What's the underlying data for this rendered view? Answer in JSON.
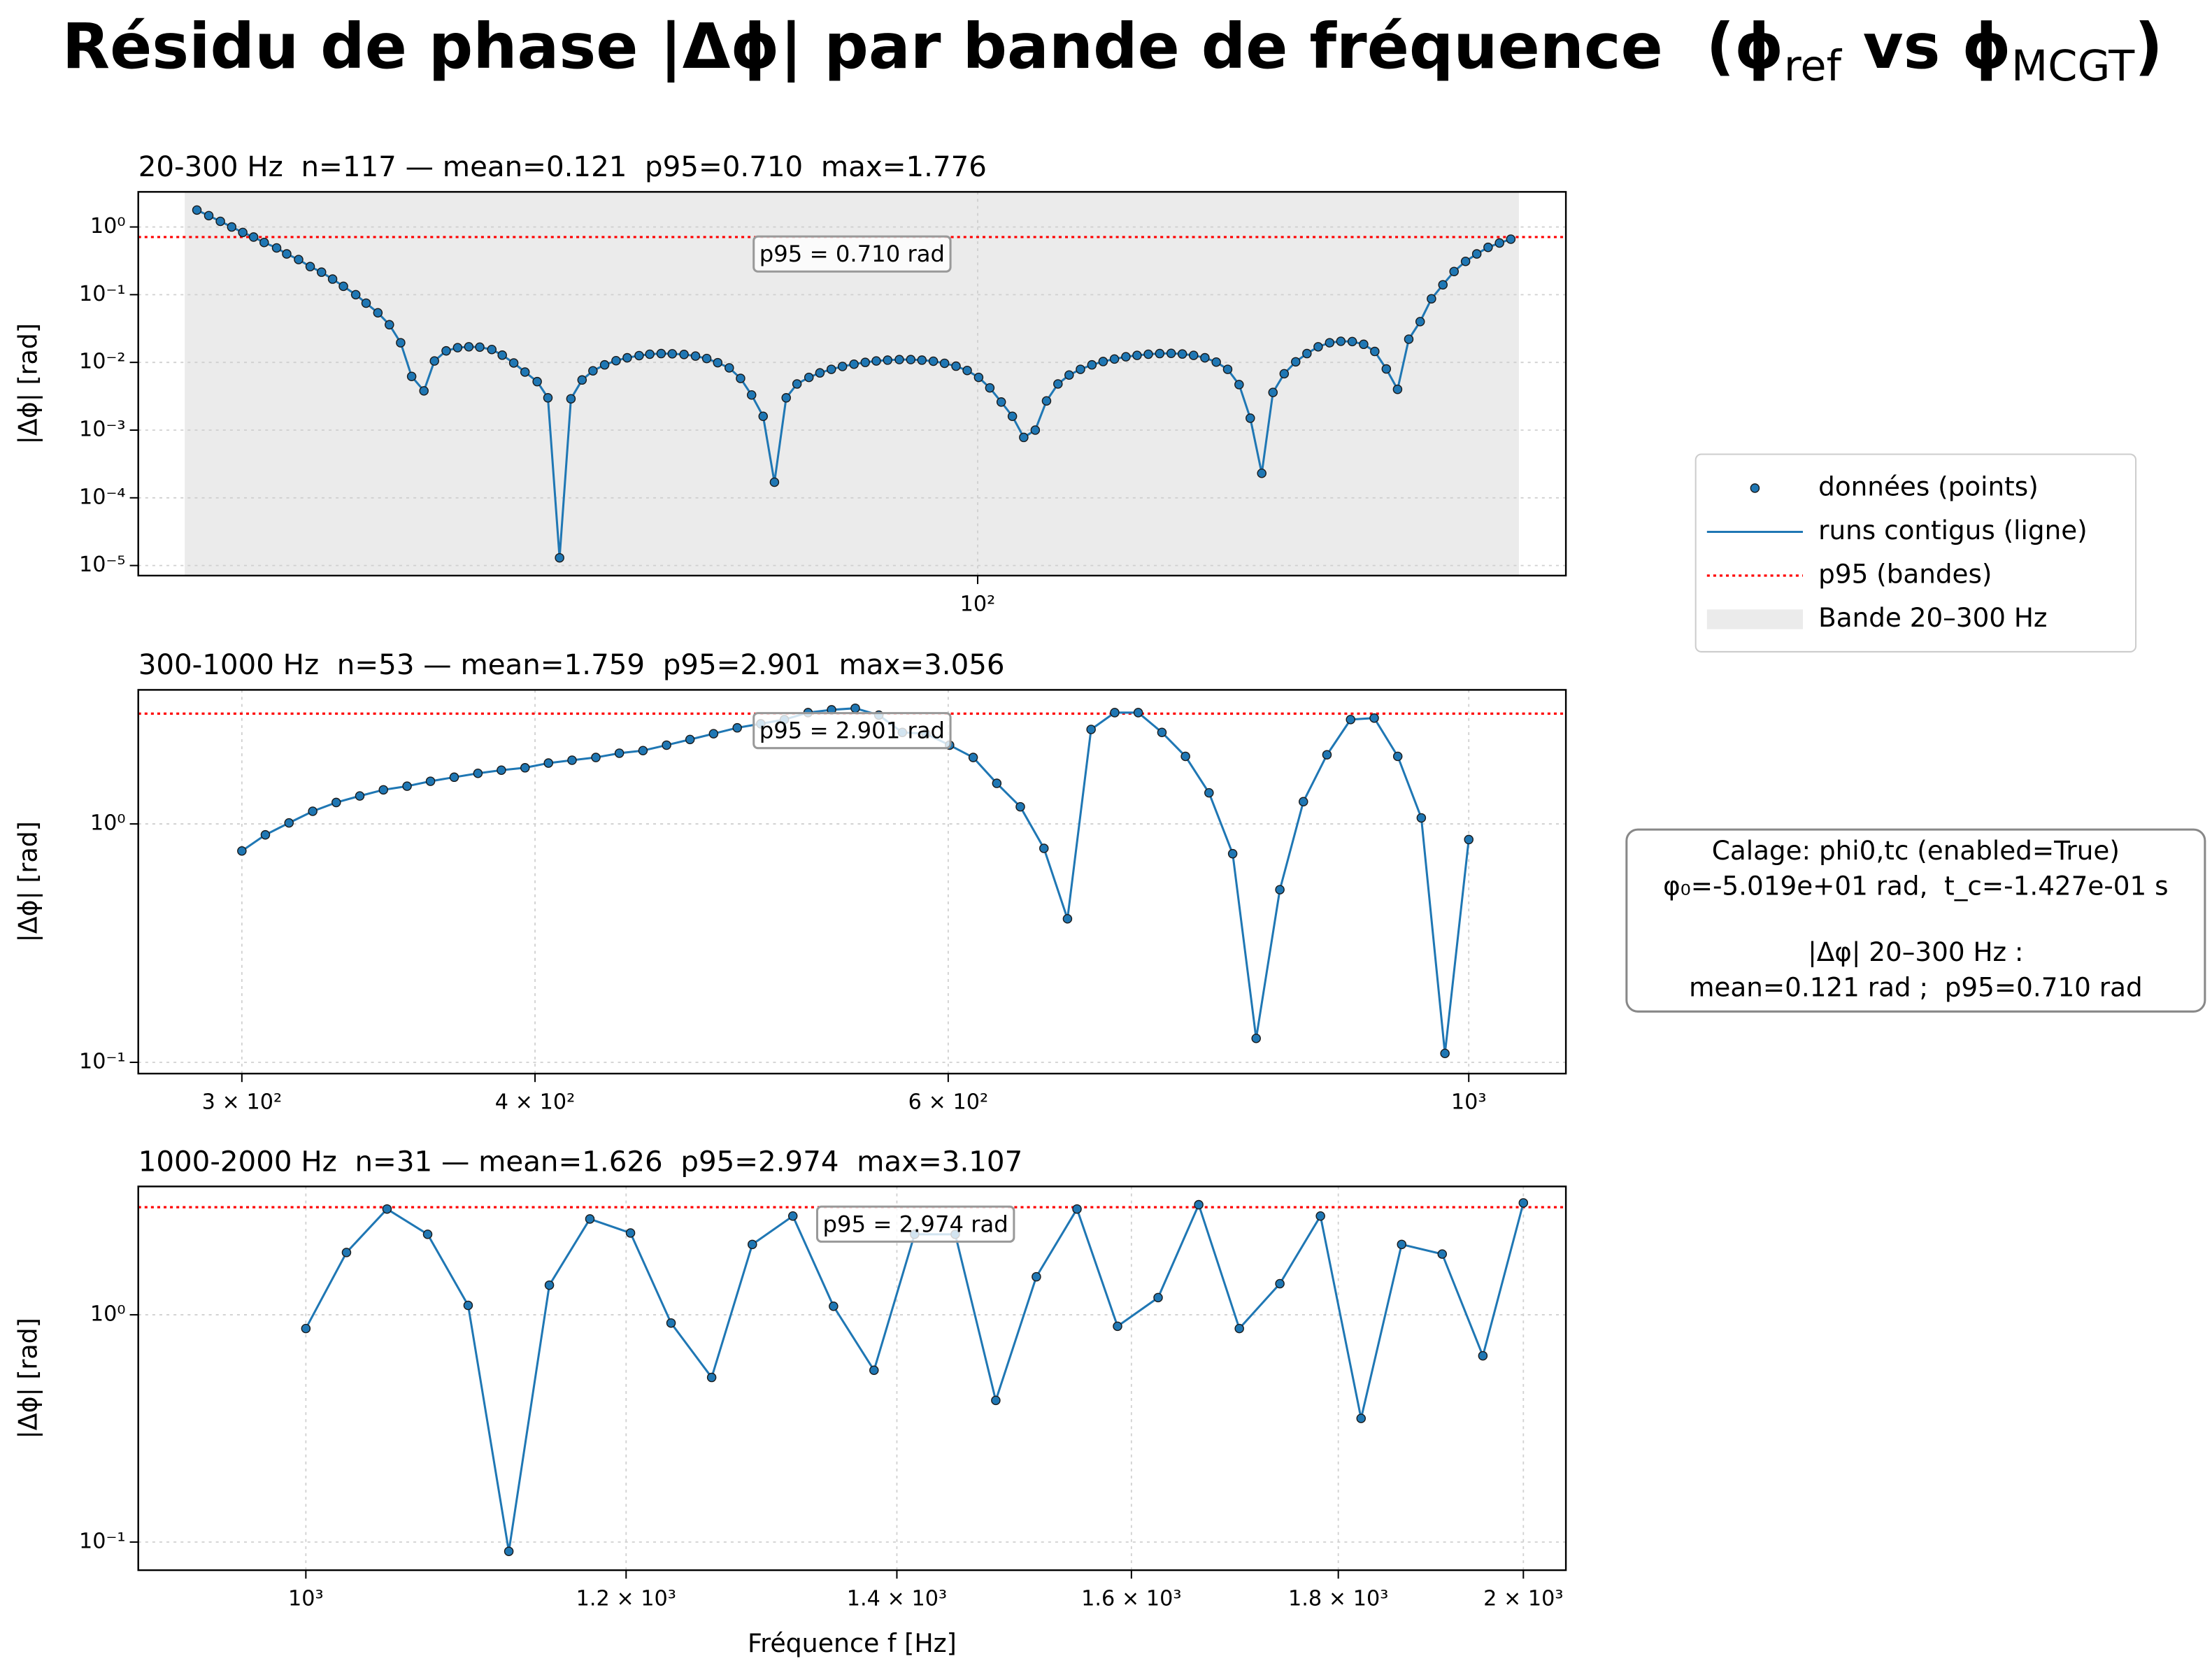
{
  "title_parts": [
    "Résidu de phase |Δϕ| par bande de fréquence  (ϕ",
    "ref",
    " vs ϕ",
    "MCGT",
    ")"
  ],
  "legend": {
    "items": [
      "données (points)",
      "runs contigus (ligne)",
      "p95 (bandes)",
      "Bande 20–300 Hz"
    ]
  },
  "info_box": [
    "Calage: phi0,tc (enabled=True)",
    "φ₀=-5.019e+01 rad,  t_c=-1.427e-01 s",
    "|Δφ| 20–300 Hz :",
    "mean=0.121 rad ;  p95=0.710 rad"
  ],
  "chart_data": [
    {
      "type": "line",
      "title": "20-300 Hz  n=117 — mean=0.121  p95=0.710  max=1.776",
      "y_label": "|Δϕ| [rad]",
      "xscale": "log",
      "yscale": "log",
      "grid": true,
      "xlim": [
        18.2,
        330
      ],
      "ylim": [
        7.1e-06,
        3.3
      ],
      "xticks": [
        {
          "value": 100,
          "label": "10²"
        }
      ],
      "yticks": [
        {
          "value": 1e-05,
          "label": "10⁻⁵"
        },
        {
          "value": 0.0001,
          "label": "10⁻⁴"
        },
        {
          "value": 0.001,
          "label": "10⁻³"
        },
        {
          "value": 0.01,
          "label": "10⁻²"
        },
        {
          "value": 0.1,
          "label": "10⁻¹"
        },
        {
          "value": 1,
          "label": "10⁰"
        }
      ],
      "band": [
        20,
        300
      ],
      "band_color": "#ebebeb",
      "p95": 0.71,
      "p95_color": "#ff0000",
      "annotation": "p95 = 0.710 rad",
      "x": [
        20.5,
        21.0,
        21.5,
        22.0,
        22.5,
        23.0,
        23.5,
        24.1,
        24.6,
        25.2,
        25.8,
        26.4,
        27.0,
        27.6,
        28.3,
        28.9,
        29.6,
        30.3,
        31.0,
        31.7,
        32.5,
        33.2,
        34.0,
        34.8,
        35.6,
        36.4,
        37.3,
        38.1,
        39.0,
        39.9,
        40.9,
        41.8,
        42.8,
        43.8,
        44.8,
        45.8,
        46.9,
        48.0,
        49.1,
        50.3,
        51.4,
        52.6,
        53.8,
        55.1,
        56.4,
        57.7,
        59.0,
        60.4,
        61.8,
        63.2,
        64.7,
        66.2,
        67.8,
        69.3,
        71.0,
        72.6,
        74.3,
        76.0,
        77.8,
        79.6,
        81.4,
        83.3,
        85.3,
        87.3,
        89.3,
        91.4,
        93.5,
        95.7,
        97.9,
        100.2,
        102.5,
        104.9,
        107.3,
        109.8,
        112.4,
        115.0,
        117.7,
        120.4,
        123.2,
        126.1,
        129.0,
        132.0,
        135.1,
        138.2,
        141.4,
        144.7,
        148.1,
        151.5,
        155.0,
        158.6,
        162.3,
        166.1,
        170.0,
        173.9,
        178.0,
        182.1,
        186.3,
        190.7,
        195.1,
        199.6,
        204.3,
        209.0,
        213.9,
        218.9,
        223.9,
        229.2,
        234.5,
        239.9,
        245.5,
        251.2,
        257.1,
        263.0,
        269.2,
        275.4,
        281.8,
        288.4,
        295.1
      ],
      "series": [
        {
          "color": "#1f77b4",
          "values": [
            1.776,
            1.47,
            1.21,
            1.0,
            0.83,
            0.71,
            0.59,
            0.49,
            0.4,
            0.33,
            0.26,
            0.215,
            0.17,
            0.133,
            0.1,
            0.075,
            0.054,
            0.036,
            0.0195,
            0.0062,
            0.0038,
            0.0105,
            0.0148,
            0.0165,
            0.017,
            0.0168,
            0.0155,
            0.0128,
            0.0098,
            0.0072,
            0.0052,
            0.003,
            1.3e-05,
            0.0029,
            0.0055,
            0.0075,
            0.0092,
            0.0106,
            0.0117,
            0.0126,
            0.0132,
            0.0135,
            0.0134,
            0.0131,
            0.0124,
            0.0114,
            0.0099,
            0.0083,
            0.0058,
            0.0033,
            0.0016,
            0.00017,
            0.003,
            0.0048,
            0.006,
            0.007,
            0.0079,
            0.0087,
            0.0094,
            0.01,
            0.0105,
            0.0108,
            0.011,
            0.011,
            0.0108,
            0.0104,
            0.0097,
            0.0088,
            0.0076,
            0.006,
            0.0042,
            0.0026,
            0.0016,
            0.00078,
            0.001,
            0.0027,
            0.0048,
            0.0065,
            0.0079,
            0.0092,
            0.0103,
            0.0112,
            0.0121,
            0.0127,
            0.0132,
            0.0135,
            0.0136,
            0.0133,
            0.0127,
            0.0117,
            0.0101,
            0.0079,
            0.0047,
            0.0015,
            0.00023,
            0.0036,
            0.0068,
            0.0102,
            0.0135,
            0.017,
            0.0195,
            0.0205,
            0.0203,
            0.0185,
            0.0145,
            0.008,
            0.004,
            0.022,
            0.04,
            0.087,
            0.14,
            0.22,
            0.31,
            0.4,
            0.5,
            0.58,
            0.66
          ]
        }
      ]
    },
    {
      "type": "line",
      "title": "300-1000 Hz  n=53 — mean=1.759  p95=2.901  max=3.056",
      "y_label": "|Δϕ| [rad]",
      "xscale": "log",
      "yscale": "log",
      "grid": true,
      "xlim": [
        271,
        1100
      ],
      "ylim": [
        0.0897,
        3.65
      ],
      "xticks": [
        {
          "value": 300,
          "label": "3 × 10²"
        },
        {
          "value": 400,
          "label": "4 × 10²"
        },
        {
          "value": 600,
          "label": "6 × 10²"
        },
        {
          "value": 1000,
          "label": "10³"
        }
      ],
      "yticks": [
        {
          "value": 0.1,
          "label": "10⁻¹"
        },
        {
          "value": 1,
          "label": "10⁰"
        }
      ],
      "p95": 2.901,
      "p95_color": "#ff0000",
      "annotation": "p95 = 2.901 rad",
      "x": [
        300,
        307.0,
        314.2,
        321.6,
        329.1,
        336.8,
        344.7,
        352.8,
        361.0,
        369.5,
        378.2,
        387.0,
        396.1,
        405.3,
        414.8,
        424.6,
        434.5,
        444.7,
        455.1,
        465.7,
        476.6,
        487.8,
        499.2,
        510.9,
        522.9,
        535.1,
        547.7,
        560.5,
        573.6,
        587.0,
        600.8,
        614.9,
        629.3,
        644.0,
        659.1,
        674.5,
        690.3,
        706.5,
        723.0,
        740.0,
        757.3,
        775.0,
        793.2,
        811.7,
        830.8,
        850.2,
        870.1,
        890.5,
        911.4,
        932.7,
        954.5,
        976.9,
        1000
      ],
      "series": [
        {
          "color": "#1f77b4",
          "values": [
            0.77,
            0.9,
            1.01,
            1.13,
            1.23,
            1.31,
            1.39,
            1.44,
            1.51,
            1.57,
            1.63,
            1.68,
            1.72,
            1.8,
            1.85,
            1.9,
            1.98,
            2.03,
            2.14,
            2.26,
            2.39,
            2.53,
            2.63,
            2.74,
            2.93,
            3.01,
            3.056,
            2.86,
            2.42,
            2.39,
            2.14,
            1.9,
            1.48,
            1.18,
            0.79,
            0.4,
            2.49,
            2.93,
            2.93,
            2.42,
            1.92,
            1.35,
            0.75,
            0.126,
            0.53,
            1.24,
            1.95,
            2.74,
            2.78,
            1.92,
            1.06,
            0.109,
            0.86
          ]
        }
      ]
    },
    {
      "type": "line",
      "title": "1000-2000 Hz  n=31 — mean=1.626  p95=2.974  max=3.107",
      "y_label": "|Δϕ| [rad]",
      "x_label": "Fréquence f [Hz]",
      "xscale": "log",
      "yscale": "log",
      "grid": true,
      "xlim": [
        909,
        2049
      ],
      "ylim": [
        0.0752,
        3.67
      ],
      "xticks": [
        {
          "value": 1000,
          "label": "10³"
        },
        {
          "value": 1200,
          "label": "1.2 × 10³"
        },
        {
          "value": 1400,
          "label": "1.4 × 10³"
        },
        {
          "value": 1600,
          "label": "1.6 × 10³"
        },
        {
          "value": 1800,
          "label": "1.8 × 10³"
        },
        {
          "value": 2000,
          "label": "2 × 10³"
        }
      ],
      "yticks": [
        {
          "value": 0.1,
          "label": "10⁻¹"
        },
        {
          "value": 1,
          "label": "10⁰"
        }
      ],
      "p95": 2.974,
      "p95_color": "#ff0000",
      "annotation": "p95 = 2.974 rad",
      "x": [
        1000,
        1023.4,
        1047.3,
        1071.8,
        1096.8,
        1122.5,
        1148.7,
        1175.5,
        1203.0,
        1231.1,
        1259.9,
        1289.4,
        1319.5,
        1350.4,
        1381.9,
        1414.2,
        1447.3,
        1481.1,
        1515.7,
        1551.2,
        1587.4,
        1624.5,
        1662.5,
        1701.4,
        1741.1,
        1781.8,
        1823.5,
        1866.1,
        1909.7,
        1954.4,
        2000
      ],
      "series": [
        {
          "color": "#1f77b4",
          "values": [
            0.87,
            1.88,
            2.92,
            2.26,
            1.1,
            0.091,
            1.35,
            2.64,
            2.29,
            0.92,
            0.53,
            2.04,
            2.72,
            1.09,
            0.57,
            2.26,
            2.26,
            0.42,
            1.47,
            2.92,
            0.89,
            1.19,
            3.05,
            0.87,
            1.37,
            2.72,
            0.35,
            2.04,
            1.85,
            0.66,
            3.107
          ]
        }
      ]
    }
  ]
}
